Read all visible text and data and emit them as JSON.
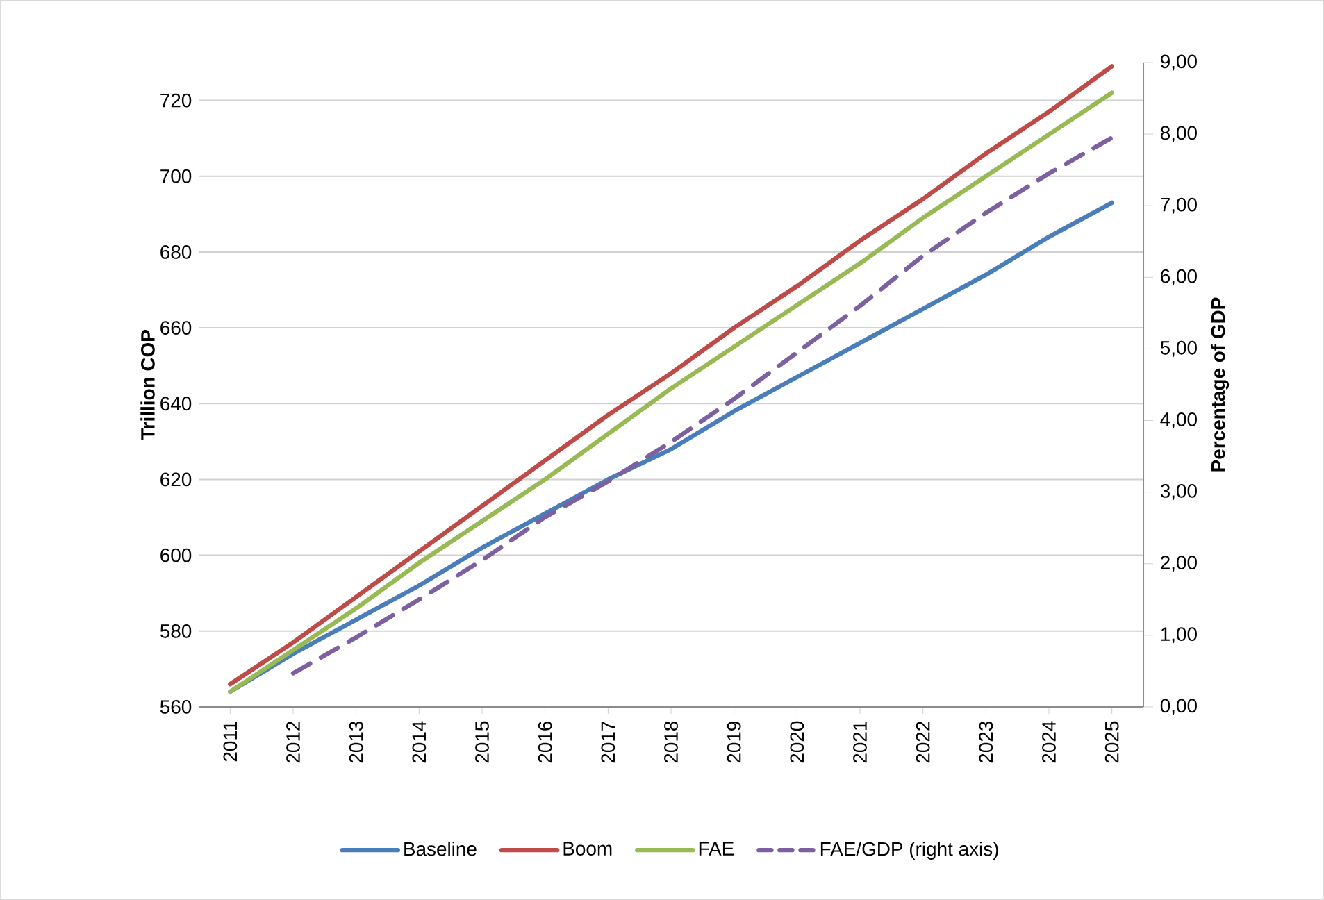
{
  "chart_data": {
    "type": "line",
    "ylabel": "Trillion COP",
    "y2label": "Percentage of GDP",
    "categories": [
      "2011",
      "2012",
      "2013",
      "2014",
      "2015",
      "2016",
      "2017",
      "2018",
      "2019",
      "2020",
      "2021",
      "2022",
      "2023",
      "2024",
      "2025"
    ],
    "series": [
      {
        "name": "Baseline",
        "color": "#4a7ebb",
        "values": [
          564,
          574,
          583,
          592,
          602,
          611,
          620,
          628,
          638,
          647,
          656,
          665,
          674,
          684,
          693
        ]
      },
      {
        "name": "Boom",
        "color": "#be4b48",
        "values": [
          566,
          577,
          589,
          601,
          613,
          625,
          637,
          648,
          660,
          671,
          683,
          694,
          706,
          717,
          729
        ]
      },
      {
        "name": "FAE",
        "color": "#98b954",
        "values": [
          564,
          575,
          586,
          598,
          609,
          620,
          632,
          644,
          655,
          666,
          677,
          689,
          700,
          711,
          722
        ]
      },
      {
        "name": "FAE/GDP (right axis)",
        "color": "#7d60a0",
        "axis": "y2",
        "line_style": "dashed",
        "values": [
          null,
          0.47,
          0.97,
          1.5,
          2.05,
          2.65,
          3.15,
          3.7,
          4.3,
          4.95,
          5.6,
          6.3,
          6.9,
          7.45,
          7.95
        ]
      }
    ],
    "ylim": [
      560,
      730
    ],
    "yticks": [
      560,
      580,
      600,
      620,
      640,
      660,
      680,
      700,
      720
    ],
    "y2lim": [
      0,
      9
    ],
    "y2ticks": [
      {
        "value": 0,
        "label": "0,00"
      },
      {
        "value": 1,
        "label": "1,00"
      },
      {
        "value": 2,
        "label": "2,00"
      },
      {
        "value": 3,
        "label": "3,00"
      },
      {
        "value": 4,
        "label": "4,00"
      },
      {
        "value": 5,
        "label": "5,00"
      },
      {
        "value": 6,
        "label": "6,00"
      },
      {
        "value": 7,
        "label": "7,00"
      },
      {
        "value": 8,
        "label": "8,00"
      },
      {
        "value": 9,
        "label": "9,00"
      }
    ],
    "grid": "y",
    "legend": "bottom",
    "marker": "none",
    "line_style": "solid"
  }
}
